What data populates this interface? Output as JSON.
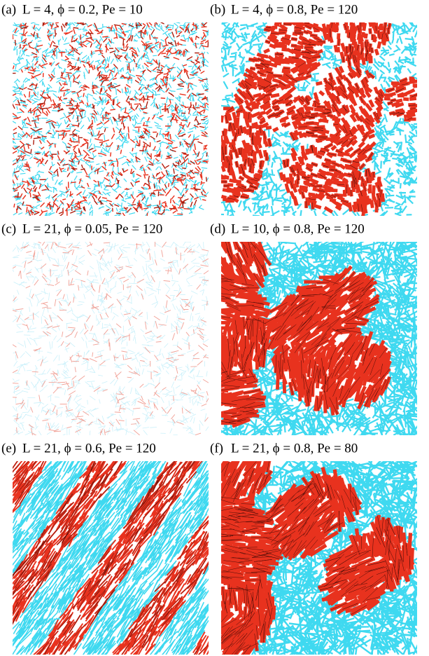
{
  "panels": [
    {
      "label": "(a)",
      "caption": "L = 4, ϕ = 0.2, Pe = 10"
    },
    {
      "label": "(b)",
      "caption": "L = 4, ϕ = 0.8, Pe = 120"
    },
    {
      "label": "(c)",
      "caption": "L = 21, ϕ = 0.05, Pe = 120"
    },
    {
      "label": "(d)",
      "caption": "L = 10, ϕ = 0.8, Pe = 120"
    },
    {
      "label": "(e)",
      "caption": "L = 21, ϕ = 0.6, Pe = 120"
    },
    {
      "label": "(f)",
      "caption": "L = 21, ϕ = 0.8, Pe = 80"
    }
  ]
}
